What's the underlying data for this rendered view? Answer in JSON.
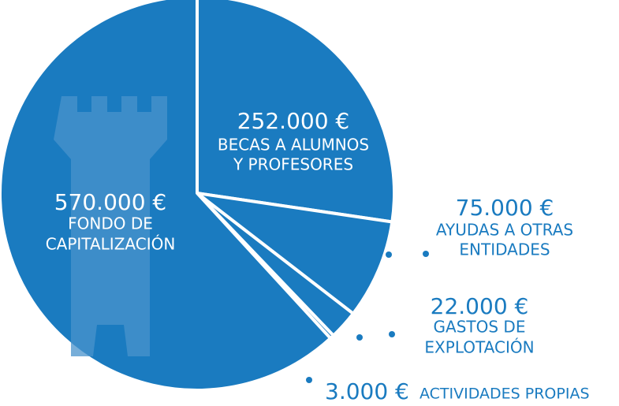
{
  "chart_data": {
    "type": "pie",
    "categories": [
      [
        "BECAS A ALUMNOS",
        "Y PROFESORES"
      ],
      [
        "AYUDAS A OTRAS",
        "ENTIDADES"
      ],
      [
        "GASTOS DE",
        "EXPLOTACIÓN"
      ],
      [
        "ACTIVIDADES PROPIAS"
      ],
      [
        "FONDO DE",
        "CAPITALIZACIÓN"
      ]
    ],
    "values": [
      252000,
      75000,
      22000,
      3000,
      570000
    ],
    "value_labels": [
      "252.000 €",
      "75.000 €",
      "22.000 €",
      "3.000 €",
      "570.000 €"
    ],
    "color": "#1a7bc0"
  }
}
